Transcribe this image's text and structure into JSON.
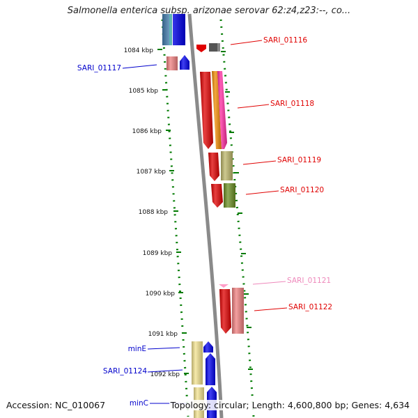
{
  "title": "Salmonella enterica subsp. arizonae serovar 62:z4,z23:--, co...",
  "footer": {
    "accession": "Accession: NC_010067",
    "summary": "Topology: circular; Length: 4,600,800 bp; Genes: 4,634"
  },
  "ruler": [
    "1084 kbp",
    "1085 kbp",
    "1086 kbp",
    "1087 kbp",
    "1088 kbp",
    "1089 kbp",
    "1090 kbp",
    "1091 kbp",
    "1092 kbp"
  ],
  "genes": [
    {
      "name": "SARI_01116",
      "color": "#e00000"
    },
    {
      "name": "SARI_01117",
      "color": "#0000cc"
    },
    {
      "name": "SARI_01118",
      "color": "#e00000"
    },
    {
      "name": "SARI_01119",
      "color": "#e00000"
    },
    {
      "name": "SARI_01120",
      "color": "#e00000"
    },
    {
      "name": "SARI_01121",
      "color": "#ee88bb"
    },
    {
      "name": "SARI_01122",
      "color": "#e00000"
    },
    {
      "name": "minE",
      "color": "#0000cc"
    },
    {
      "name": "SARI_01124",
      "color": "#0000cc"
    },
    {
      "name": "minC",
      "color": "#0000cc"
    }
  ],
  "colors": {
    "ruler_dots": "#007a00",
    "backbone": "#8a8a8a",
    "red": "#e00000",
    "salmon": "#f08080",
    "orange": "#f08a00",
    "magenta": "#ff2aa0",
    "khaki": "#bdb76b",
    "olive": "#6b8e23",
    "blue": "#0000ee",
    "pale_yellow": "#f3e38f",
    "steel_blue": "#4682b4",
    "dark_gray": "#555555",
    "pink": "#ff9ec8"
  }
}
